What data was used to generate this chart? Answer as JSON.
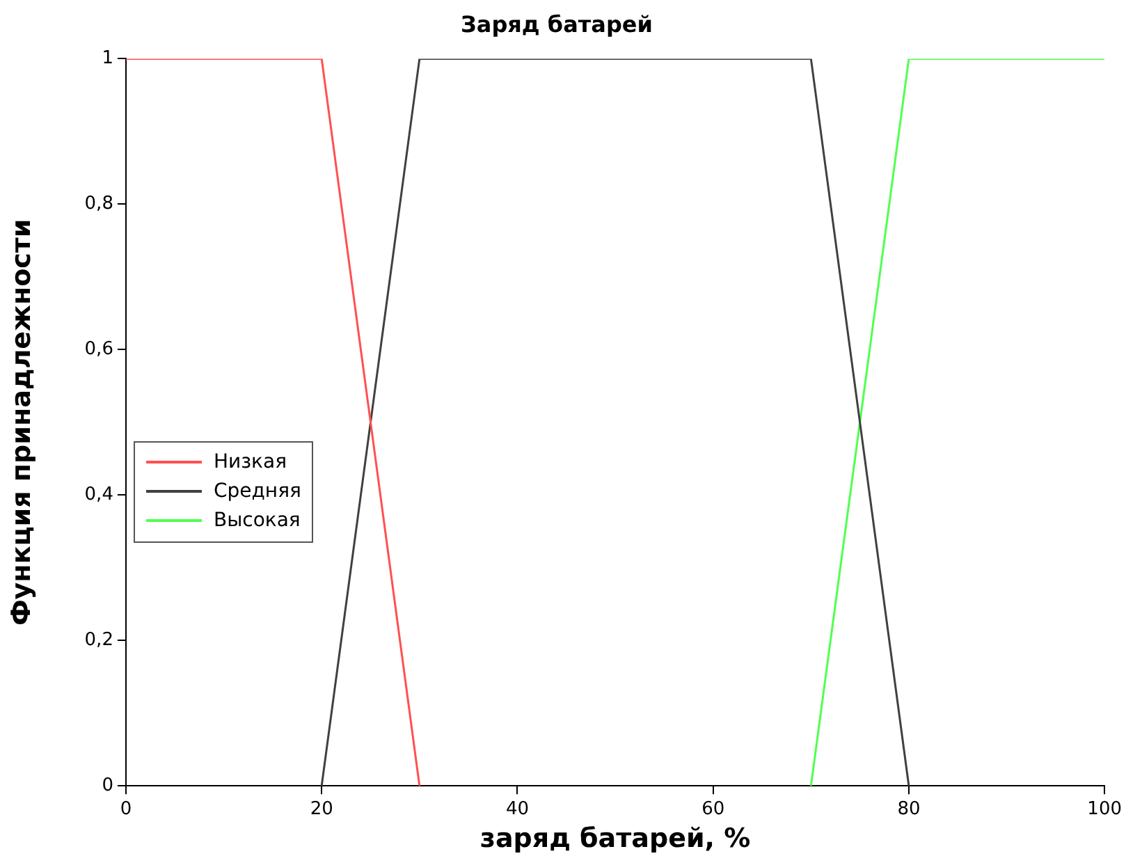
{
  "chart_data": {
    "type": "line",
    "title": "Заряд батарей",
    "xlabel": "заряд батарей, %",
    "ylabel": "Функция принадлежности",
    "xlim": [
      0,
      100
    ],
    "xticks": [
      0,
      20,
      40,
      60,
      80,
      100
    ],
    "ylim": [
      0,
      1
    ],
    "yticks": [
      0,
      {
        "value": 0.2,
        "label": "0,2"
      },
      {
        "value": 0.4,
        "label": "0,4"
      },
      {
        "value": 0.6,
        "label": "0,6"
      },
      {
        "value": 0.8,
        "label": "0,8"
      },
      1
    ],
    "grid": false,
    "legend": "left",
    "marker": "none",
    "line_style": "solid",
    "series": [
      {
        "name": "Низкая",
        "color": "#ff5050",
        "x": [
          0,
          20,
          30
        ],
        "values": [
          1,
          1,
          0
        ]
      },
      {
        "name": "Средняя",
        "color": "#404040",
        "x": [
          20,
          30,
          70,
          80
        ],
        "values": [
          0,
          1,
          1,
          0
        ]
      },
      {
        "name": "Высокая",
        "color": "#50ff50",
        "x": [
          70,
          80,
          100
        ],
        "values": [
          0,
          1,
          1
        ]
      }
    ]
  }
}
